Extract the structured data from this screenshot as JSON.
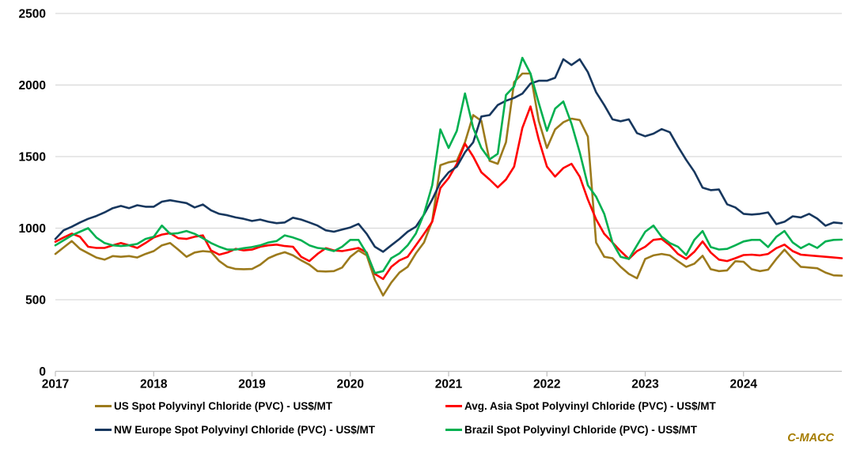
{
  "watermark": {
    "label": "C-MACC",
    "color": "#A57C00"
  },
  "colors": {
    "gridline": "#D9D9D9",
    "axis_line": "#BFBFBF",
    "tick": "#BFBFBF",
    "label": "#000000",
    "background": "#FFFFFF"
  },
  "chart_data": {
    "type": "line",
    "title": "",
    "xlabel": "",
    "ylabel": "",
    "grid": "horizontal",
    "legend_position": "bottom",
    "x_axis": {
      "tick_labels": [
        "2017",
        "2018",
        "2019",
        "2020",
        "2021",
        "2022",
        "2023",
        "2024"
      ],
      "start_year": 2017,
      "points_per_year": 12
    },
    "y_axis": {
      "tick_labels": [
        "0",
        "500",
        "1000",
        "1500",
        "2000",
        "2500"
      ],
      "min": 0,
      "max": 2500,
      "step": 500
    },
    "series": [
      {
        "id": "us",
        "name": "US Spot Polyvinyl Chloride (PVC) - US$/MT",
        "color": "#9C7A1C",
        "values": [
          820,
          865,
          910,
          855,
          825,
          795,
          780,
          805,
          800,
          805,
          795,
          820,
          840,
          880,
          896,
          850,
          800,
          830,
          840,
          835,
          770,
          730,
          715,
          713,
          715,
          745,
          790,
          815,
          832,
          810,
          775,
          745,
          700,
          697,
          700,
          725,
          800,
          845,
          810,
          640,
          530,
          620,
          690,
          730,
          824,
          900,
          1050,
          1440,
          1460,
          1470,
          1600,
          1790,
          1750,
          1470,
          1450,
          1600,
          2020,
          2080,
          2080,
          1750,
          1560,
          1690,
          1740,
          1765,
          1755,
          1640,
          900,
          800,
          790,
          730,
          680,
          650,
          785,
          810,
          820,
          810,
          769,
          730,
          752,
          807,
          713,
          700,
          705,
          769,
          765,
          713,
          700,
          710,
          785,
          850,
          785,
          730,
          725,
          720,
          690,
          670,
          668
        ]
      },
      {
        "id": "asia",
        "name": "Avg. Asia Spot Polyvinyl Chloride (PVC) - US$/MT",
        "color": "#FF0000",
        "values": [
          905,
          935,
          962,
          940,
          870,
          862,
          862,
          880,
          896,
          880,
          862,
          896,
          935,
          955,
          965,
          930,
          925,
          940,
          950,
          845,
          815,
          830,
          855,
          845,
          850,
          870,
          880,
          885,
          875,
          870,
          800,
          770,
          820,
          860,
          845,
          840,
          850,
          862,
          830,
          680,
          645,
          730,
          775,
          800,
          880,
          960,
          1045,
          1280,
          1350,
          1450,
          1590,
          1500,
          1390,
          1340,
          1285,
          1340,
          1430,
          1700,
          1850,
          1620,
          1430,
          1360,
          1420,
          1450,
          1360,
          1200,
          1062,
          960,
          900,
          840,
          785,
          840,
          870,
          918,
          925,
          880,
          820,
          785,
          835,
          907,
          830,
          780,
          770,
          790,
          812,
          815,
          810,
          820,
          860,
          885,
          840,
          815,
          810,
          805,
          800,
          795,
          790
        ]
      },
      {
        "id": "nw-europe",
        "name": "NW Europe Spot Polyvinyl Chloride (PVC) - US$/MT",
        "color": "#17375E",
        "values": [
          925,
          985,
          1010,
          1040,
          1065,
          1085,
          1110,
          1140,
          1155,
          1140,
          1160,
          1150,
          1150,
          1185,
          1195,
          1185,
          1175,
          1145,
          1165,
          1125,
          1100,
          1090,
          1075,
          1065,
          1050,
          1060,
          1045,
          1035,
          1040,
          1073,
          1060,
          1040,
          1018,
          985,
          975,
          990,
          1005,
          1030,
          960,
          870,
          835,
          880,
          925,
          975,
          1010,
          1095,
          1200,
          1320,
          1390,
          1430,
          1530,
          1600,
          1780,
          1790,
          1860,
          1890,
          1910,
          1940,
          2010,
          2030,
          2030,
          2050,
          2180,
          2140,
          2180,
          2090,
          1950,
          1860,
          1760,
          1747,
          1760,
          1664,
          1642,
          1660,
          1692,
          1670,
          1570,
          1477,
          1394,
          1283,
          1266,
          1270,
          1167,
          1145,
          1100,
          1095,
          1100,
          1110,
          1028,
          1045,
          1083,
          1075,
          1100,
          1067,
          1017,
          1040,
          1034
        ]
      },
      {
        "id": "brazil",
        "name": "Brazil Spot Polyvinyl Chloride (PVC) - US$/MT",
        "color": "#00B050",
        "values": [
          880,
          915,
          950,
          975,
          1000,
          935,
          896,
          880,
          875,
          880,
          890,
          925,
          940,
          1018,
          960,
          965,
          980,
          960,
          930,
          896,
          870,
          850,
          850,
          860,
          868,
          880,
          900,
          910,
          950,
          935,
          915,
          880,
          862,
          855,
          840,
          870,
          918,
          918,
          824,
          686,
          700,
          790,
          824,
          880,
          962,
          1100,
          1300,
          1690,
          1560,
          1680,
          1941,
          1700,
          1560,
          1480,
          1520,
          1930,
          1990,
          2190,
          2080,
          1875,
          1680,
          1835,
          1885,
          1730,
          1530,
          1300,
          1220,
          1100,
          900,
          800,
          785,
          880,
          975,
          1018,
          940,
          896,
          870,
          812,
          918,
          980,
          868,
          851,
          855,
          880,
          907,
          918,
          918,
          868,
          940,
          980,
          900,
          860,
          890,
          862,
          907,
          918,
          920
        ]
      }
    ]
  },
  "legend": {
    "items": [
      {
        "series_index": 0
      },
      {
        "series_index": 1
      },
      {
        "series_index": 2
      },
      {
        "series_index": 3
      }
    ]
  }
}
